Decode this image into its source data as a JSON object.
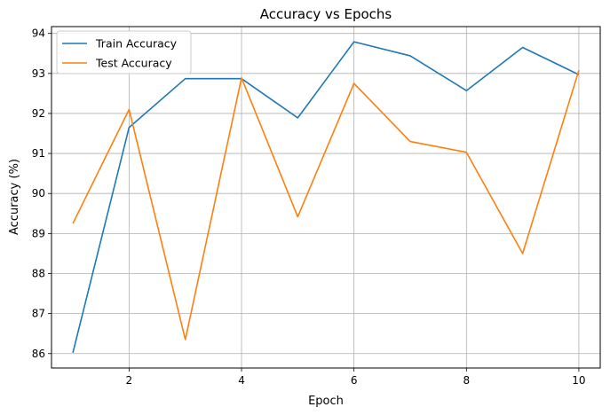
{
  "chart_data": {
    "type": "line",
    "title": "Accuracy vs Epochs",
    "xlabel": "Epoch",
    "ylabel": "Accuracy (%)",
    "x": [
      1,
      2,
      3,
      4,
      5,
      6,
      7,
      8,
      9,
      10
    ],
    "xlim": [
      0.62,
      10.38
    ],
    "ylim": [
      85.64,
      94.17
    ],
    "xticks": [
      2,
      4,
      6,
      8,
      10
    ],
    "yticks": [
      86,
      87,
      88,
      89,
      90,
      91,
      92,
      93,
      94
    ],
    "grid": true,
    "legend_position": "top-left",
    "series": [
      {
        "name": "Train Accuracy",
        "color": "#1f77b4",
        "values": [
          86.02,
          91.65,
          92.87,
          92.87,
          91.89,
          93.79,
          93.44,
          92.57,
          93.65,
          92.97
        ]
      },
      {
        "name": "Test Accuracy",
        "color": "#ff7f0e",
        "values": [
          89.25,
          92.1,
          86.35,
          92.89,
          89.42,
          92.75,
          91.3,
          91.03,
          88.5,
          93.08
        ]
      }
    ]
  }
}
